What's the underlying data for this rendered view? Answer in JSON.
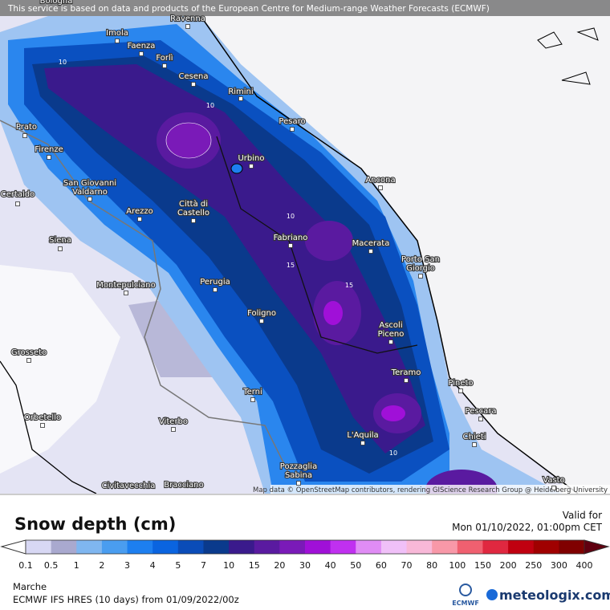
{
  "map": {
    "attribution_top": "This service is based on data and products of the European Centre for Medium-range Weather Forecasts (ECMWF)",
    "attribution_bottom": "Map data © OpenStreetMap contributors, rendering GIScience Research Group @ Heidelberg University",
    "cities": [
      [
        "Bologna"
      ],
      [
        "Ravenna"
      ],
      [
        "Imola"
      ],
      [
        "Faenza"
      ],
      [
        "Forlì"
      ],
      [
        "Cesena"
      ],
      [
        "Rimini"
      ],
      [
        "Pesaro"
      ],
      [
        "Urbino"
      ],
      [
        "Prato"
      ],
      [
        "Firenze"
      ],
      [
        "Ancona"
      ],
      [
        "San Giovanni",
        "Valdarno"
      ],
      [
        "Certaldo"
      ],
      [
        "Arezzo"
      ],
      [
        "Città di",
        "Castello"
      ],
      [
        "Fabriano"
      ],
      [
        "Macerata"
      ],
      [
        "Siena"
      ],
      [
        "Porto San",
        "Giorgio"
      ],
      [
        "Perugia"
      ],
      [
        "Montepulciano"
      ],
      [
        "Foligno"
      ],
      [
        "Ascoli",
        "Piceno"
      ],
      [
        "Grosseto"
      ],
      [
        "Teramo"
      ],
      [
        "Pineto"
      ],
      [
        "Terni"
      ],
      [
        "Pescara"
      ],
      [
        "Orbetello"
      ],
      [
        "Viterbo"
      ],
      [
        "Chieti"
      ],
      [
        "L'Aquila"
      ],
      [
        "Civitavecchia"
      ],
      [
        "Bracciano"
      ],
      [
        "Pozzaglia",
        "Sabina"
      ],
      [
        "Vasto"
      ]
    ],
    "contour_labels": [
      "10",
      "10",
      "10",
      "15",
      "15",
      "10"
    ]
  },
  "legend": {
    "title": "Snow depth (cm)",
    "labels": [
      "0.1",
      "0.5",
      "1",
      "2",
      "3",
      "4",
      "5",
      "7",
      "10",
      "15",
      "20",
      "30",
      "40",
      "50",
      "60",
      "70",
      "80",
      "100",
      "150",
      "200",
      "250",
      "300",
      "400"
    ],
    "colors": [
      "#d8d8f4",
      "#a9a9cf",
      "#7fb6f0",
      "#4a9df0",
      "#1d7ff0",
      "#0a64e0",
      "#0a4cb8",
      "#0a3a8c",
      "#3a1a8c",
      "#5a1aa0",
      "#7a1ab8",
      "#a010d8",
      "#c030f0",
      "#e08cf5",
      "#f0c0f8",
      "#f8b8d8",
      "#f898a8",
      "#f06070",
      "#e02840",
      "#c00010",
      "#a00000",
      "#800000"
    ]
  },
  "footer": {
    "valid_label": "Valid for",
    "valid_time": "Mon 01/10/2022, 01:00pm CET",
    "region": "Marche",
    "model": "ECMWF IFS HRES (10 days) from 01/09/2022/00z",
    "ecmwf_logo": "ECMWF",
    "brand": "meteologix.com"
  }
}
